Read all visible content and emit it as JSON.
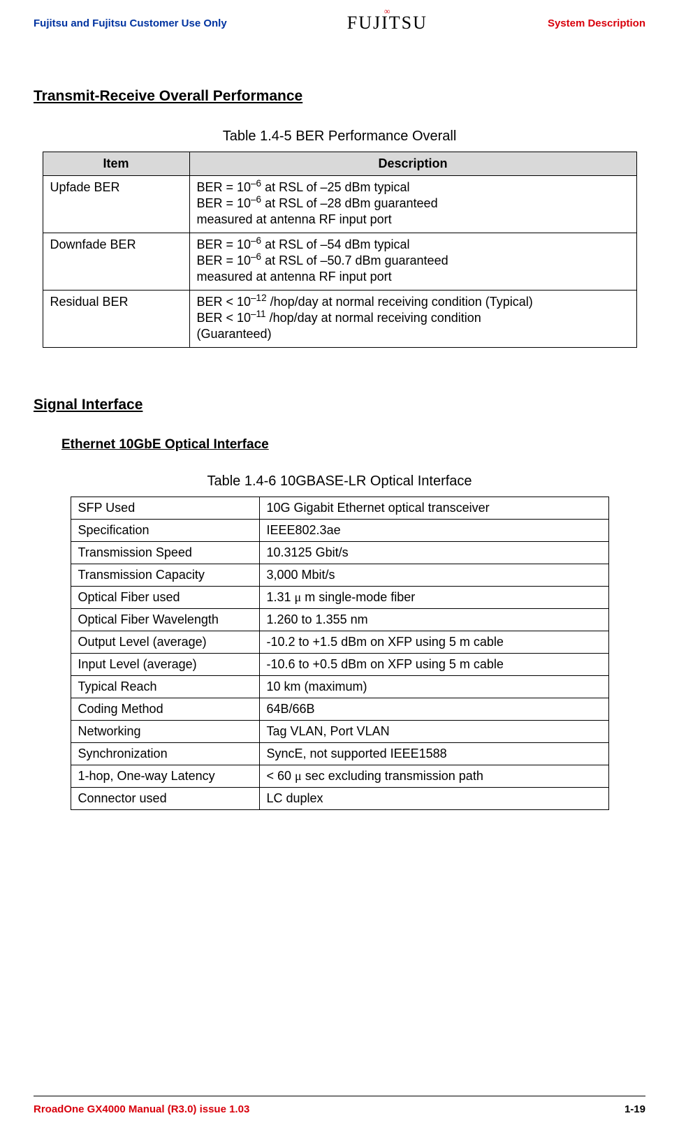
{
  "header": {
    "left": "Fujitsu and Fujitsu Customer Use Only",
    "brand": "FUJITSU",
    "right": "System Description"
  },
  "sec1": {
    "title": "Transmit-Receive Overall Performance",
    "caption": "Table 1.4-5 BER Performance Overall",
    "th_item": "Item",
    "th_desc": "Description",
    "rows": [
      {
        "item": "Upfade BER",
        "l1a": "BER = 10",
        "l1exp": "–6",
        "l1b": " at RSL of –25 dBm typical",
        "l2a": "BER = 10",
        "l2exp": "–6",
        "l2b": " at RSL of –28 dBm guaranteed",
        "l3": "measured at antenna RF input port"
      },
      {
        "item": "Downfade BER",
        "l1a": "BER = 10",
        "l1exp": "–6",
        "l1b": " at RSL of –54 dBm typical",
        "l2a": "BER = 10",
        "l2exp": "–6",
        "l2b": " at RSL of –50.7 dBm guaranteed",
        "l3": "measured at antenna RF input port"
      },
      {
        "item": "Residual BER",
        "l1a": "BER < 10",
        "l1exp": "–12",
        "l1b": " /hop/day at normal receiving condition (Typical)",
        "l2a": "BER < 10",
        "l2exp": "–11",
        "l2b": " /hop/day at normal receiving condition",
        "l3": "(Guaranteed)"
      }
    ]
  },
  "sec2": {
    "title": "Signal Interface",
    "sub": "Ethernet 10GbE Optical Interface",
    "caption": "Table 1.4-6 10GBASE-LR Optical Interface",
    "rows": [
      {
        "k": "SFP Used",
        "v": "10G Gigabit Ethernet optical transceiver"
      },
      {
        "k": "Specification",
        "v": "IEEE802.3ae"
      },
      {
        "k": "Transmission Speed",
        "v": "10.3125 Gbit/s"
      },
      {
        "k": "Transmission Capacity",
        "v": "3,000 Mbit/s"
      },
      {
        "k": "Optical Fiber used",
        "v_pre": "1.31 ",
        "v_mu": "μ",
        "v_post": " m single-mode fiber"
      },
      {
        "k": "Optical Fiber Wavelength",
        "v": "1.260 to 1.355 nm"
      },
      {
        "k": "Output Level (average)",
        "v": "-10.2 to +1.5 dBm on XFP using 5 m cable"
      },
      {
        "k": "Input Level (average)",
        "v": "-10.6 to +0.5 dBm on XFP using 5 m cable"
      },
      {
        "k": "Typical Reach",
        "v": "10 km (maximum)"
      },
      {
        "k": "Coding Method",
        "v": "64B/66B"
      },
      {
        "k": "Networking",
        "v": "Tag VLAN, Port VLAN"
      },
      {
        "k": "Synchronization",
        "v": "SyncE, not supported IEEE1588"
      },
      {
        "k": "1-hop, One-way Latency",
        "v_pre": "< 60 ",
        "v_mu": "μ",
        "v_post": " sec excluding transmission path"
      },
      {
        "k": "Connector used",
        "v": "LC duplex"
      }
    ]
  },
  "footer": {
    "left": "RroadOne GX4000 Manual (R3.0) issue 1.03",
    "right": "1-19"
  }
}
